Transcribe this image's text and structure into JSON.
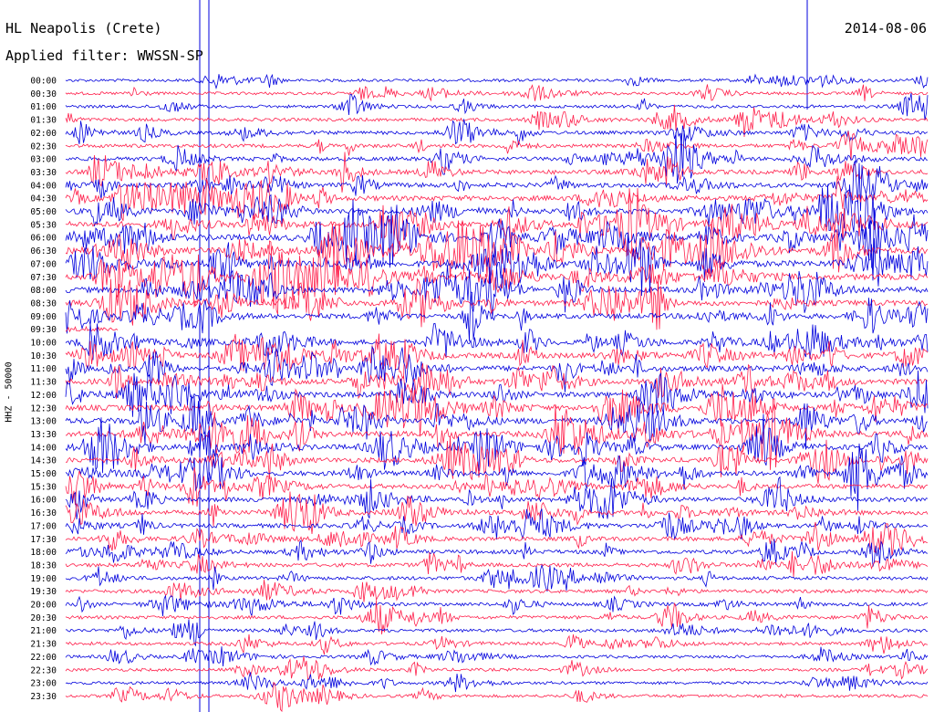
{
  "header": {
    "station": "HL Neapolis (Crete)",
    "date": "2014-08-06",
    "filter": "Applied filter: WWSSN-SP"
  },
  "chart_data": {
    "type": "line",
    "title": "HL Neapolis (Crete)",
    "subtitle": "Applied filter: WWSSN-SP",
    "date": "2014-08-06",
    "ylabel": "HHZ - 50000",
    "rows": [
      "00:00",
      "00:30",
      "01:00",
      "01:30",
      "02:00",
      "02:30",
      "03:00",
      "03:30",
      "04:00",
      "04:30",
      "05:00",
      "05:30",
      "06:00",
      "06:30",
      "07:00",
      "07:30",
      "08:00",
      "08:30",
      "09:00",
      "09:30",
      "10:00",
      "10:30",
      "11:00",
      "11:30",
      "12:00",
      "12:30",
      "13:00",
      "13:30",
      "14:00",
      "14:30",
      "15:00",
      "15:30",
      "16:00",
      "16:30",
      "17:00",
      "17:30",
      "18:00",
      "18:30",
      "19:00",
      "19:30",
      "20:00",
      "20:30",
      "21:00",
      "21:30",
      "22:00",
      "22:30",
      "23:00",
      "23:30"
    ],
    "row_colors": [
      "#0000dd",
      "#ff1f4b"
    ],
    "activity": [
      0.15,
      0.18,
      0.2,
      0.25,
      0.3,
      0.35,
      0.45,
      0.55,
      0.6,
      0.7,
      0.8,
      0.9,
      0.95,
      1.0,
      0.95,
      0.9,
      0.85,
      0.8,
      0.7,
      0.65,
      0.7,
      0.75,
      0.8,
      0.8,
      0.8,
      0.8,
      0.85,
      0.8,
      0.75,
      0.7,
      0.65,
      0.6,
      0.55,
      0.55,
      0.5,
      0.5,
      0.45,
      0.4,
      0.35,
      0.3,
      0.3,
      0.3,
      0.25,
      0.25,
      0.2,
      0.2,
      0.18,
      0.2
    ],
    "grid": false
  }
}
